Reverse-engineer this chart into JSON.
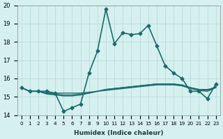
{
  "xlabel": "Humidex (Indice chaleur)",
  "ylabel": "",
  "background_color": "#d6f0ef",
  "grid_color": "#b0d8d8",
  "line_color": "#1a6b6b",
  "xlim": [
    -0.5,
    23.5
  ],
  "ylim": [
    14,
    20
  ],
  "yticks": [
    14,
    15,
    16,
    17,
    18,
    19,
    20
  ],
  "xticks": [
    0,
    1,
    2,
    3,
    4,
    5,
    6,
    7,
    8,
    9,
    10,
    11,
    12,
    13,
    14,
    15,
    16,
    17,
    18,
    19,
    20,
    21,
    22,
    23
  ],
  "series": [
    {
      "x": [
        0,
        1,
        2,
        3,
        4,
        5,
        6,
        7,
        8,
        9,
        10,
        11,
        12,
        13,
        14,
        15,
        16,
        17,
        18,
        19,
        20,
        21,
        22,
        23
      ],
      "y": [
        15.5,
        15.3,
        15.3,
        15.3,
        15.2,
        14.2,
        14.4,
        14.6,
        16.3,
        17.5,
        19.8,
        17.9,
        18.5,
        18.4,
        18.45,
        18.9,
        17.8,
        16.7,
        16.3,
        16.0,
        15.3,
        15.3,
        14.9,
        15.7
      ],
      "style": "-",
      "marker": "D",
      "markersize": 2.5,
      "linewidth": 1.2
    },
    {
      "x": [
        0,
        1,
        2,
        3,
        4,
        5,
        6,
        7,
        8,
        9,
        10,
        11,
        12,
        13,
        14,
        15,
        16,
        17,
        18,
        19,
        20,
        21,
        22,
        23
      ],
      "y": [
        15.5,
        15.3,
        15.3,
        15.2,
        15.2,
        15.2,
        15.2,
        15.2,
        15.25,
        15.3,
        15.35,
        15.4,
        15.45,
        15.5,
        15.55,
        15.6,
        15.65,
        15.65,
        15.65,
        15.6,
        15.5,
        15.4,
        15.4,
        15.5
      ],
      "style": "-",
      "marker": null,
      "markersize": 0,
      "linewidth": 1.0
    },
    {
      "x": [
        0,
        1,
        2,
        3,
        4,
        5,
        6,
        7,
        8,
        9,
        10,
        11,
        12,
        13,
        14,
        15,
        16,
        17,
        18,
        19,
        20,
        21,
        22,
        23
      ],
      "y": [
        15.5,
        15.3,
        15.3,
        15.2,
        15.15,
        15.1,
        15.1,
        15.15,
        15.2,
        15.3,
        15.4,
        15.45,
        15.5,
        15.55,
        15.6,
        15.65,
        15.7,
        15.7,
        15.7,
        15.65,
        15.5,
        15.4,
        15.35,
        15.55
      ],
      "style": "-",
      "marker": null,
      "markersize": 0,
      "linewidth": 1.0
    },
    {
      "x": [
        0,
        1,
        2,
        3,
        4,
        5,
        6,
        7,
        8,
        9,
        10,
        11,
        12,
        13,
        14,
        15,
        16,
        17,
        18,
        19,
        20,
        21,
        22,
        23
      ],
      "y": [
        15.5,
        15.3,
        15.3,
        15.15,
        15.1,
        15.05,
        15.05,
        15.1,
        15.2,
        15.3,
        15.4,
        15.45,
        15.5,
        15.55,
        15.6,
        15.65,
        15.7,
        15.7,
        15.7,
        15.6,
        15.45,
        15.35,
        15.3,
        15.5
      ],
      "style": "-",
      "marker": null,
      "markersize": 0,
      "linewidth": 1.0
    }
  ]
}
